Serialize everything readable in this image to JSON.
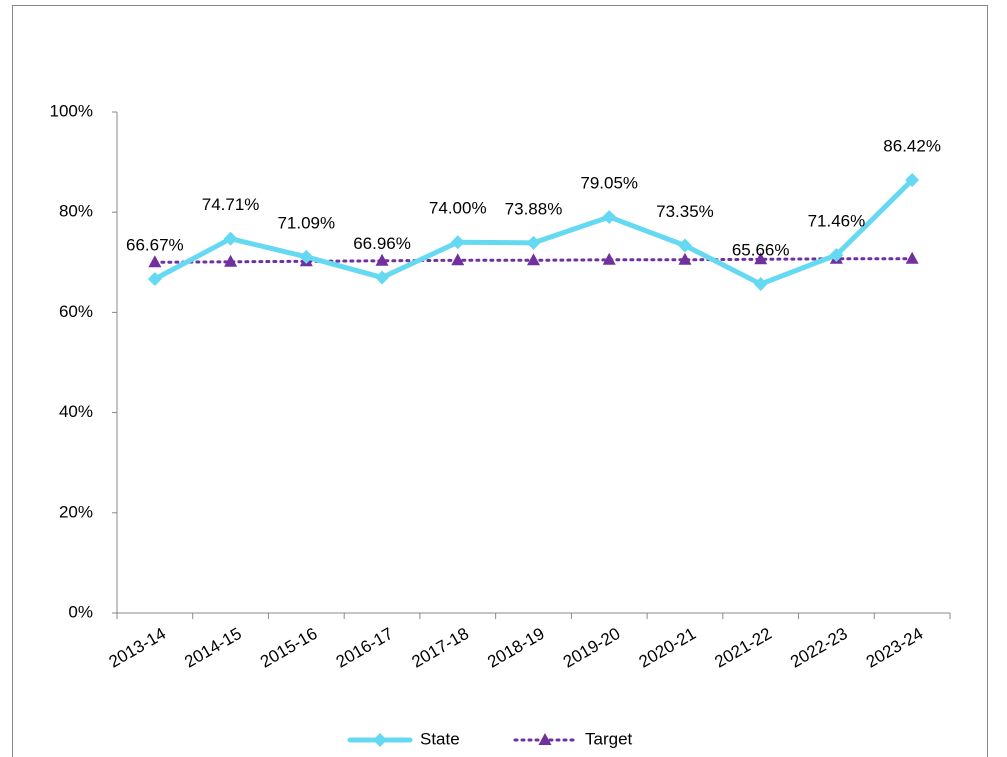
{
  "chart_data": {
    "type": "line",
    "categories": [
      "2013-14",
      "2014-15",
      "2015-16",
      "2016-17",
      "2017-18",
      "2018-19",
      "2019-20",
      "2020-21",
      "2021-22",
      "2022-23",
      "2023-24"
    ],
    "series": [
      {
        "name": "State",
        "color": "#66d9f2",
        "marker": "diamond",
        "dash": "solid",
        "values": [
          66.67,
          74.71,
          71.09,
          66.96,
          74.0,
          73.88,
          79.05,
          73.35,
          65.66,
          71.46,
          86.42
        ],
        "value_labels": [
          "66.67%",
          "74.71%",
          "71.09%",
          "66.96%",
          "74.00%",
          "73.88%",
          "79.05%",
          "73.35%",
          "65.66%",
          "71.46%",
          "86.42%"
        ]
      },
      {
        "name": "Target",
        "color": "#7030a0",
        "marker": "triangle",
        "dash": "dotted",
        "values": [
          70.0,
          70.1,
          70.2,
          70.3,
          70.4,
          70.4,
          70.5,
          70.5,
          70.6,
          70.7,
          70.7
        ]
      }
    ],
    "ylim": [
      0,
      100
    ],
    "yticks": [
      {
        "value": 0,
        "label": "0%"
      },
      {
        "value": 20,
        "label": "20%"
      },
      {
        "value": 40,
        "label": "40%"
      },
      {
        "value": 60,
        "label": "60%"
      },
      {
        "value": 80,
        "label": "80%"
      },
      {
        "value": 100,
        "label": "100%"
      }
    ],
    "grid": false,
    "legend": "bottom"
  }
}
